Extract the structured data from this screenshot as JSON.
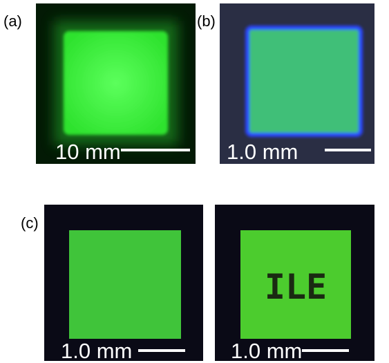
{
  "panels": [
    {
      "label": "(a)",
      "scale_bar": "10 mm"
    },
    {
      "label": "(b)",
      "scale_bar": "1.0 mm"
    },
    {
      "label": "(c)",
      "images": [
        {
          "scale_bar": "1.0 mm"
        },
        {
          "scale_bar": "1.0 mm",
          "text": "ILE"
        }
      ]
    }
  ]
}
